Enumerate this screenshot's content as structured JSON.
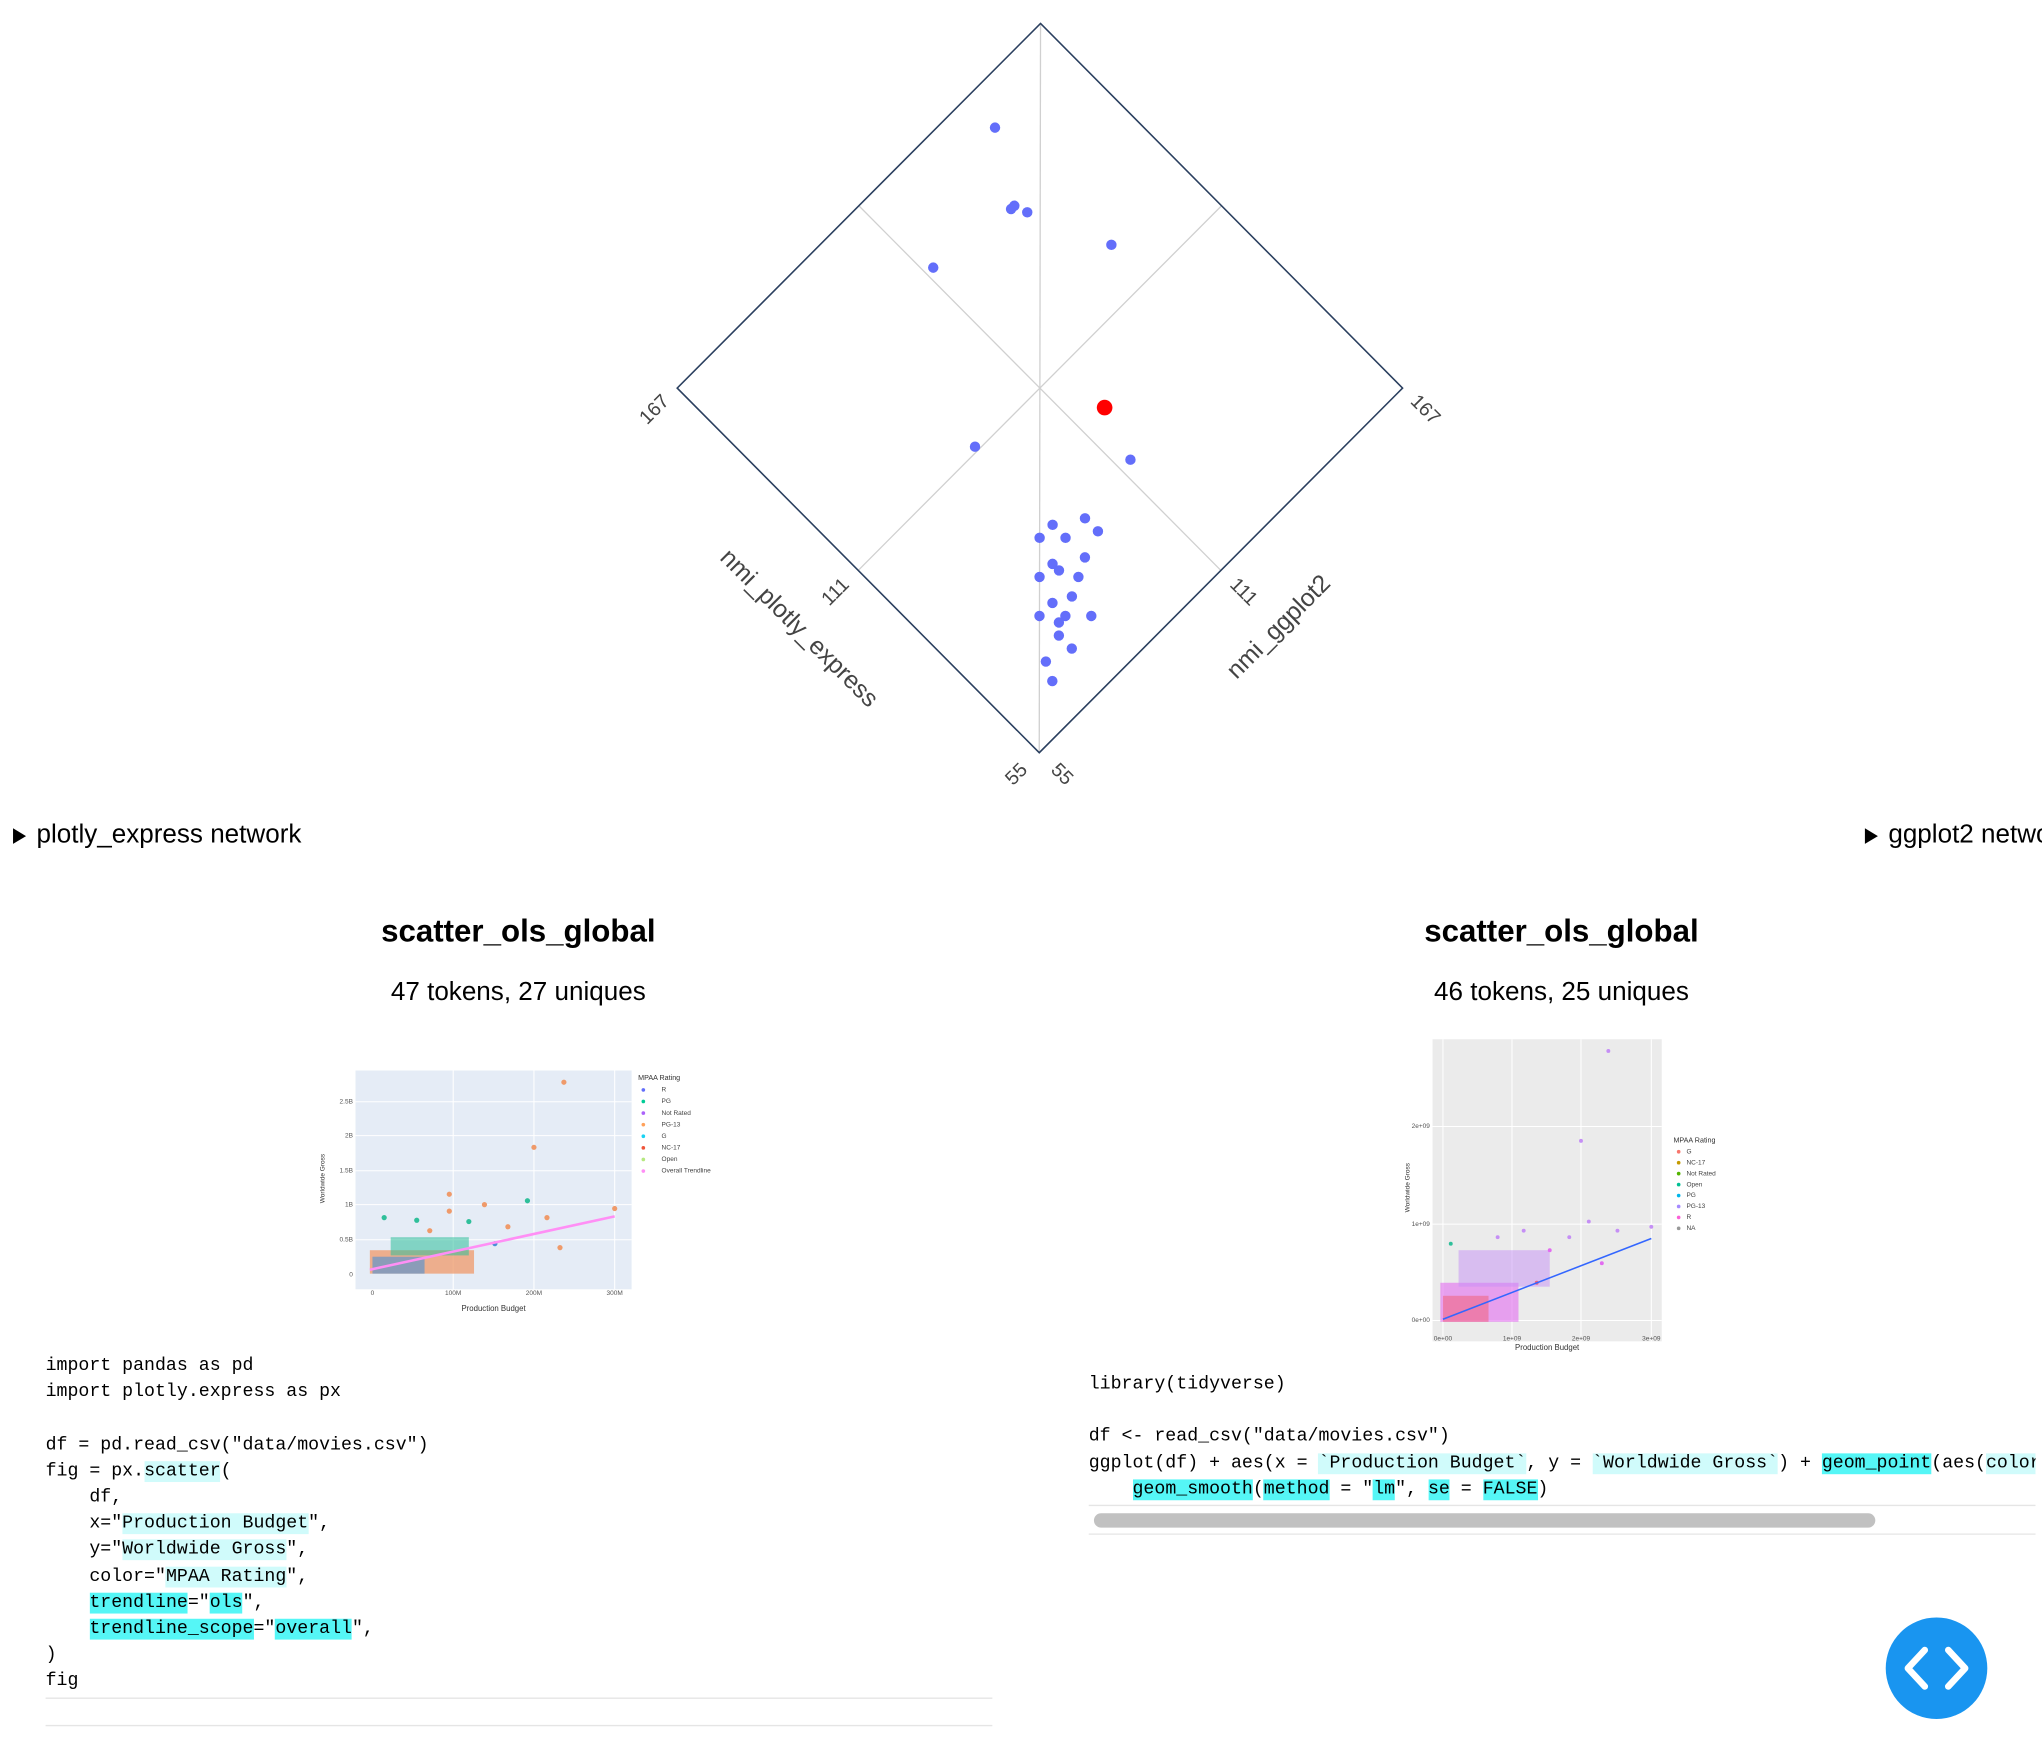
{
  "chart_data": {
    "type": "scatter",
    "x_label": "nmi_plotly_express",
    "y_label": "nmi_ggplot2",
    "xlim": [
      55,
      167
    ],
    "ylim": [
      55,
      167
    ],
    "xticks": [
      55,
      111,
      167
    ],
    "yticks": [
      55,
      111,
      167
    ],
    "grid": true,
    "series": [
      {
        "color": "#636efa",
        "x": [
          158,
          143,
          143,
          140,
          122,
          146,
          112,
          86,
          84,
          80,
          88,
          88,
          84,
          78,
          82,
          82,
          80,
          76,
          74,
          76,
          76,
          72,
          68,
          72,
          70,
          66,
          68,
          64
        ],
        "values": [
          144,
          134,
          135,
          136,
          144,
          113,
          92,
          114,
          98,
          98,
          92,
          88,
          92,
          92,
          86,
          82,
          86,
          88,
          84,
          80,
          76,
          80,
          84,
          78,
          76,
          76,
          70,
          68
        ]
      },
      {
        "color": "#ff0000",
        "x": [
          98
        ],
        "values": [
          118
        ]
      }
    ]
  },
  "panels": [
    {
      "summary": "plotly_express network",
      "title": "scatter_ols_global",
      "subtitle": "47 tokens, 27 uniques",
      "thumbnail": {
        "x_title": "Production Budget",
        "y_title": "Worldwide Gross",
        "legend_title": "MPAA Rating",
        "legend": [
          "R",
          "PG",
          "Not Rated",
          "PG-13",
          "G",
          "NC-17",
          "Open",
          "Overall Trendline"
        ],
        "yticks": [
          "2.5B",
          "2B",
          "1.5B",
          "1B",
          "0.5B",
          "0"
        ],
        "xticks": [
          "0",
          "100M",
          "200M",
          "300M"
        ]
      },
      "code": [
        [
          "import pandas as pd"
        ],
        [
          "import plotly.express as px"
        ],
        [],
        [
          "df = pd.read_csv(\"data/movies.csv\")"
        ],
        [
          "fig = px.",
          {
            "text": "scatter",
            "highlight": "light"
          },
          "("
        ],
        [
          "    df,"
        ],
        [
          "    x=\"",
          {
            "text": "Production Budget",
            "highlight": "light"
          },
          "\","
        ],
        [
          "    y=\"",
          {
            "text": "Worldwide Gross",
            "highlight": "light"
          },
          "\","
        ],
        [
          "    color=\"",
          {
            "text": "MPAA Rating",
            "highlight": "light"
          },
          "\","
        ],
        [
          "    ",
          {
            "text": "trendline",
            "highlight": "strong"
          },
          "=\"",
          {
            "text": "ols",
            "highlight": "strong"
          },
          "\","
        ],
        [
          "    ",
          {
            "text": "trendline_scope",
            "highlight": "strong"
          },
          "=\"",
          {
            "text": "overall",
            "highlight": "strong"
          },
          "\","
        ],
        [
          ")"
        ],
        [
          "fig"
        ]
      ]
    },
    {
      "summary": "ggplot2 netwo",
      "title": "scatter_ols_global",
      "subtitle": "46 tokens, 25 uniques",
      "thumbnail": {
        "x_title": "Production Budget",
        "y_title": "Worldwide Gross",
        "legend_title": "MPAA Rating",
        "legend": [
          "G",
          "NC-17",
          "Not Rated",
          "Open",
          "PG",
          "PG-13",
          "R",
          "NA"
        ],
        "yticks": [
          "2e+09",
          "1e+09",
          "0e+00"
        ],
        "xticks": [
          "0e+00",
          "1e+09",
          "2e+09",
          "3e+09"
        ]
      },
      "code": [
        [
          "library(tidyverse)"
        ],
        [],
        [
          "df <- read_csv(\"data/movies.csv\")"
        ],
        [
          "ggplot(df) + aes(x = ",
          {
            "text": "`Production Budget`",
            "highlight": "light"
          },
          ", y = ",
          {
            "text": "`Worldwide Gross`",
            "highlight": "light"
          },
          ") + ",
          {
            "text": "geom_point",
            "highlight": "strong"
          },
          "(aes(",
          {
            "text": "color",
            "highlight": "light"
          },
          " ="
        ],
        [
          "    ",
          {
            "text": "geom_smooth",
            "highlight": "strong"
          },
          "(",
          {
            "text": "method",
            "highlight": "strong"
          },
          " = \"",
          {
            "text": "lm",
            "highlight": "strong"
          },
          "\", ",
          {
            "text": "se",
            "highlight": "strong"
          },
          " = ",
          {
            "text": "FALSE",
            "highlight": "strong"
          },
          ")"
        ]
      ]
    }
  ]
}
